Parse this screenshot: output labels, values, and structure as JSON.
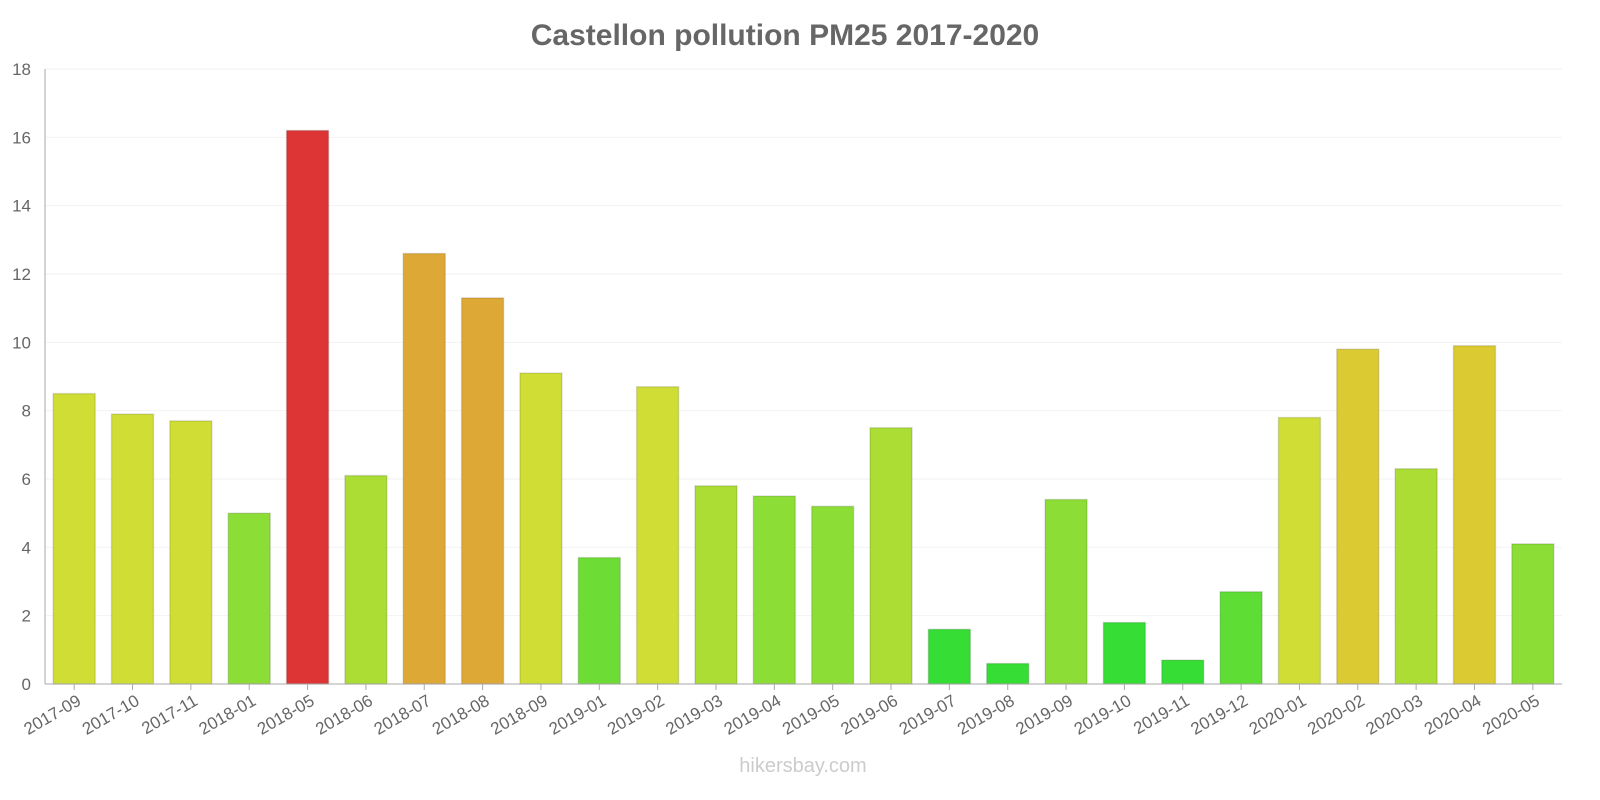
{
  "chart_data": {
    "type": "bar",
    "title": "Castellon pollution PM25 2017-2020",
    "xlabel": "",
    "ylabel": "",
    "ylim": [
      0,
      18
    ],
    "yticks": [
      0,
      2,
      4,
      6,
      8,
      10,
      12,
      14,
      16,
      18
    ],
    "grid": true,
    "categories": [
      "2017-09",
      "2017-10",
      "2017-11",
      "2018-01",
      "2018-05",
      "2018-06",
      "2018-07",
      "2018-08",
      "2018-09",
      "2019-01",
      "2019-02",
      "2019-03",
      "2019-04",
      "2019-05",
      "2019-06",
      "2019-07",
      "2019-08",
      "2019-09",
      "2019-10",
      "2019-11",
      "2019-12",
      "2020-01",
      "2020-02",
      "2020-03",
      "2020-04",
      "2020-05"
    ],
    "values": [
      8.5,
      7.9,
      7.7,
      5.0,
      16.2,
      6.1,
      12.6,
      11.3,
      9.1,
      3.7,
      8.7,
      5.8,
      5.5,
      5.2,
      7.5,
      1.6,
      0.6,
      5.4,
      1.8,
      0.7,
      2.7,
      7.8,
      9.8,
      6.3,
      9.9,
      4.1
    ],
    "colors": [
      "#cfdd35",
      "#cfdd35",
      "#cfdd35",
      "#8cdd35",
      "#dd3535",
      "#abdd35",
      "#dda835",
      "#dda835",
      "#cfdd35",
      "#6ddd35",
      "#cfdd35",
      "#abdd35",
      "#8cdd35",
      "#8cdd35",
      "#abdd35",
      "#35dd35",
      "#35dd35",
      "#8cdd35",
      "#35dd35",
      "#35dd35",
      "#5edd35",
      "#cfdd35",
      "#dbca32",
      "#abdd35",
      "#dbca32",
      "#8cdd35"
    ]
  },
  "watermark": "hikersbay.com"
}
